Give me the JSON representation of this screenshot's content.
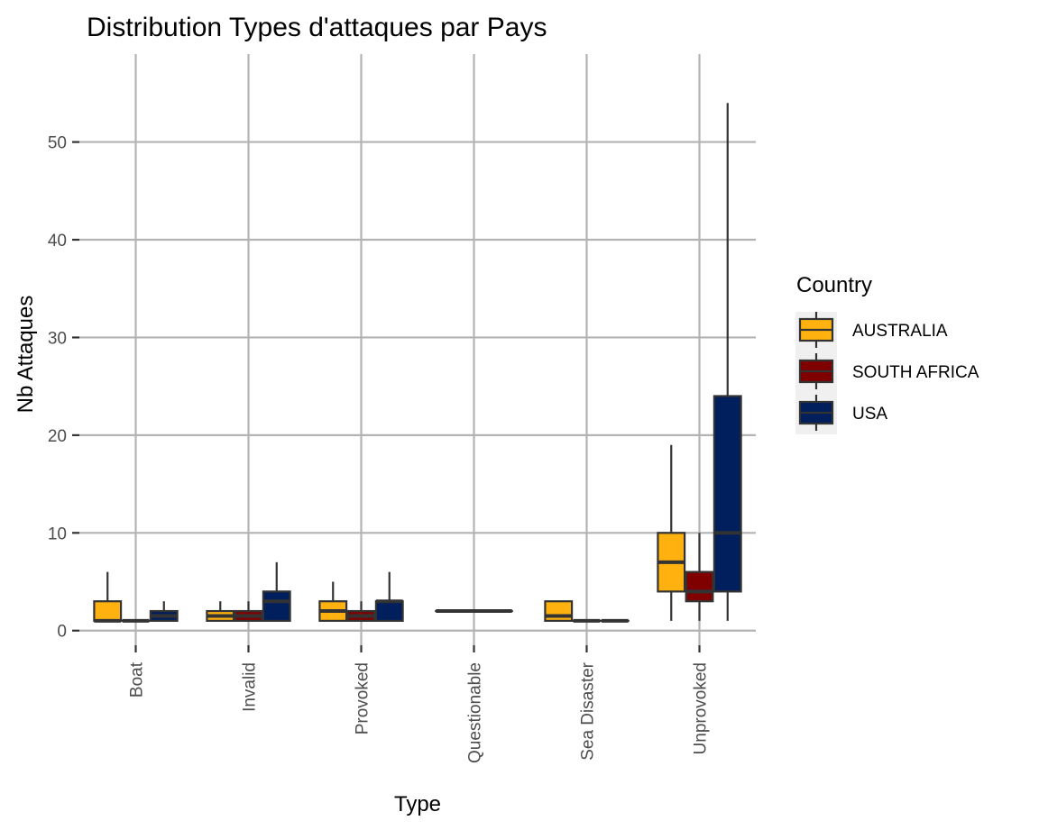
{
  "chart_data": {
    "type": "boxplot",
    "title": "Distribution Types d'attaques par Pays",
    "xlabel": "Type",
    "ylabel": "Nb Attaques",
    "ylim": [
      -1.5,
      59
    ],
    "yticks": [
      0,
      10,
      20,
      30,
      40,
      50
    ],
    "categories": [
      "Boat",
      "Invalid",
      "Provoked",
      "Questionable",
      "Sea Disaster",
      "Unprovoked"
    ],
    "legend": {
      "title": "Country",
      "position": "right"
    },
    "grid": true,
    "series": [
      {
        "name": "AUSTRALIA",
        "color": "#FFB20F",
        "boxes": [
          {
            "category": "Boat",
            "min": 1,
            "q1": 1,
            "median": 1,
            "q3": 3,
            "max": 6
          },
          {
            "category": "Invalid",
            "min": 1,
            "q1": 1,
            "median": 1.5,
            "q3": 2,
            "max": 3
          },
          {
            "category": "Provoked",
            "min": 1,
            "q1": 1,
            "median": 2,
            "q3": 3,
            "max": 5
          },
          {
            "category": "Questionable",
            "min": 2,
            "q1": 2,
            "median": 2,
            "q3": 2,
            "max": 2,
            "span": "full"
          },
          {
            "category": "Sea Disaster",
            "min": 1,
            "q1": 1,
            "median": 1.5,
            "q3": 3,
            "max": 3
          },
          {
            "category": "Unprovoked",
            "min": 1,
            "q1": 4,
            "median": 7,
            "q3": 10,
            "max": 19
          }
        ]
      },
      {
        "name": "SOUTH AFRICA",
        "color": "#800000",
        "boxes": [
          {
            "category": "Boat",
            "min": 1,
            "q1": 1,
            "median": 1,
            "q3": 1,
            "max": 1
          },
          {
            "category": "Invalid",
            "min": 1,
            "q1": 1,
            "median": 1.5,
            "q3": 2,
            "max": 3
          },
          {
            "category": "Provoked",
            "min": 1,
            "q1": 1,
            "median": 1.5,
            "q3": 2,
            "max": 3
          },
          {
            "category": "Sea Disaster",
            "min": 1,
            "q1": 1,
            "median": 1,
            "q3": 1,
            "max": 1
          },
          {
            "category": "Unprovoked",
            "min": 1,
            "q1": 3,
            "median": 4,
            "q3": 6,
            "max": 10
          }
        ]
      },
      {
        "name": "USA",
        "color": "#001F5C",
        "boxes": [
          {
            "category": "Boat",
            "min": 1,
            "q1": 1,
            "median": 1.5,
            "q3": 2,
            "max": 3
          },
          {
            "category": "Invalid",
            "min": 1,
            "q1": 1,
            "median": 3,
            "q3": 4,
            "max": 7
          },
          {
            "category": "Provoked",
            "min": 1,
            "q1": 1,
            "median": 3,
            "q3": 3,
            "max": 6
          },
          {
            "category": "Sea Disaster",
            "min": 1,
            "q1": 1,
            "median": 1,
            "q3": 1,
            "max": 1
          },
          {
            "category": "Unprovoked",
            "min": 1,
            "q1": 4,
            "median": 10,
            "q3": 24,
            "max": 54
          }
        ]
      }
    ]
  }
}
